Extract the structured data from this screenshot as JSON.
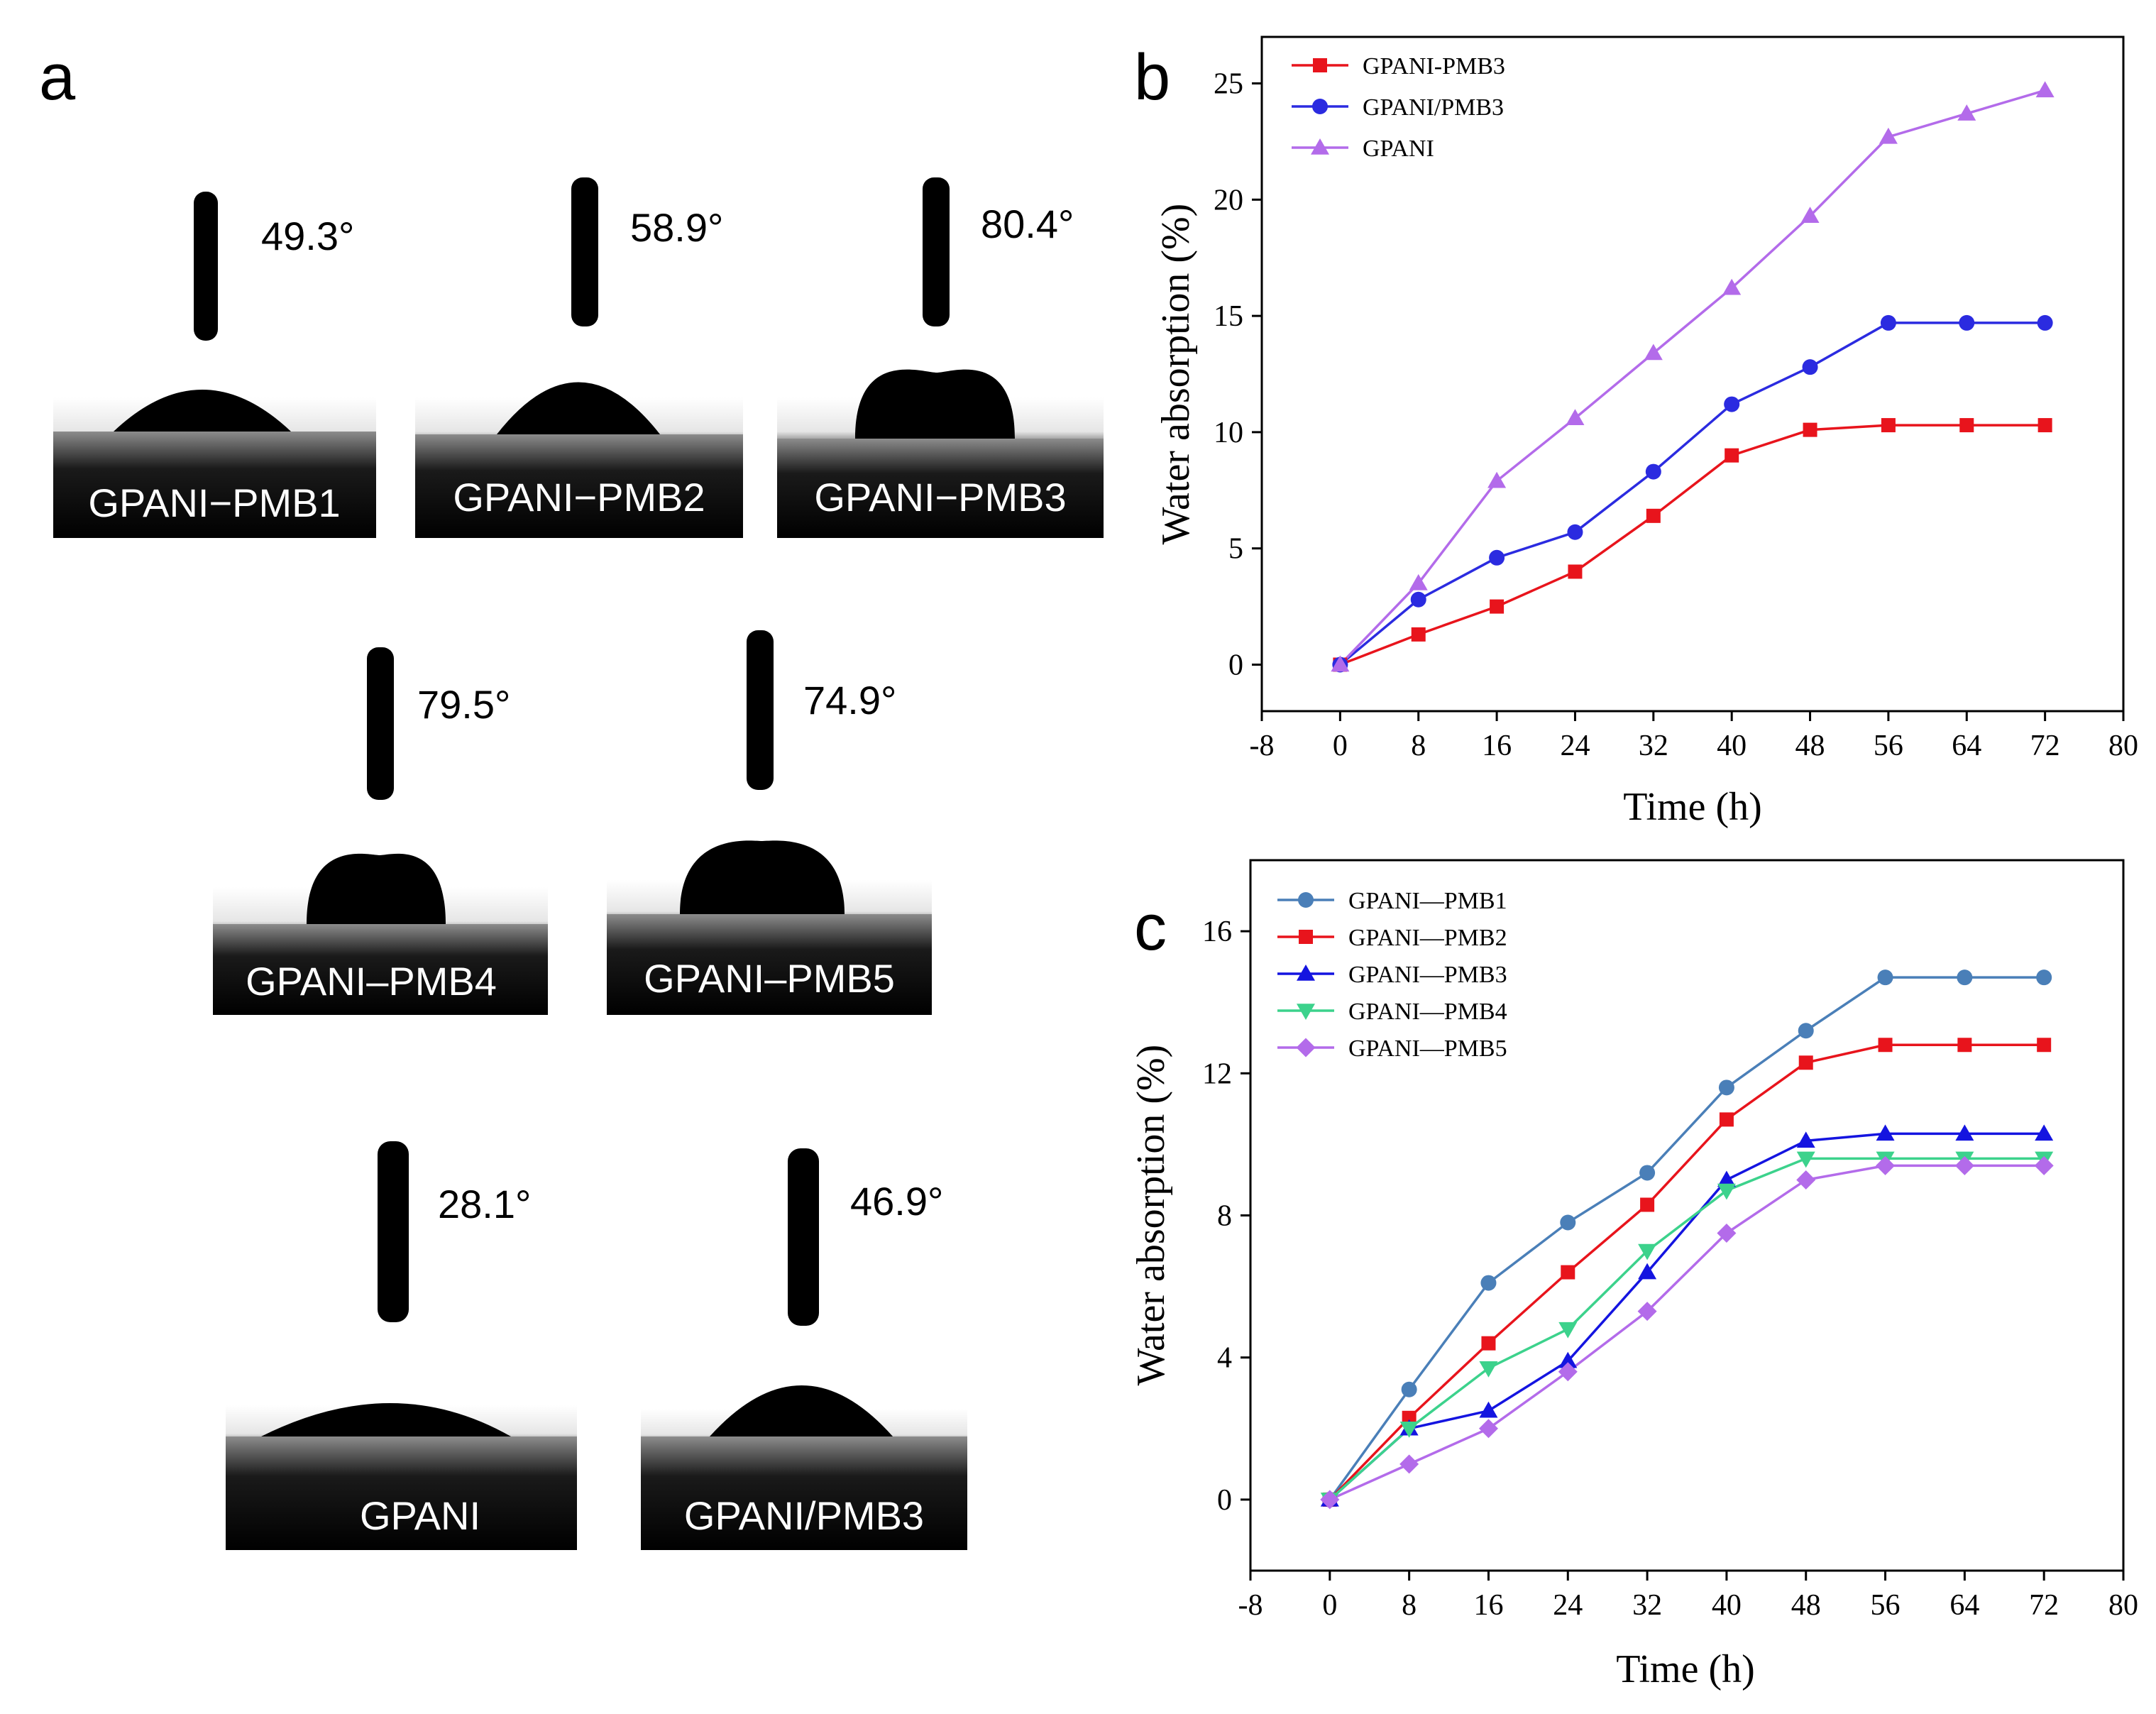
{
  "panel_a": {
    "letter": "a",
    "samples": [
      {
        "name": "GPANI−PMB1",
        "angle": "49.3°"
      },
      {
        "name": "GPANI−PMB2",
        "angle": "58.9°"
      },
      {
        "name": "GPANI−PMB3",
        "angle": "80.4°"
      },
      {
        "name": "GPANI–PMB4",
        "angle": "79.5°"
      },
      {
        "name": "GPANI–PMB5",
        "angle": "74.9°"
      },
      {
        "name": "GPANI",
        "angle": "28.1°"
      },
      {
        "name": "GPANI/PMB3",
        "angle": "46.9°"
      }
    ]
  },
  "chart_data": [
    {
      "panel": "b",
      "type": "line",
      "xlabel": "Time (h)",
      "ylabel": "Water absorption (%)",
      "xlim": [
        -8,
        80
      ],
      "ylim": [
        -2,
        27
      ],
      "xticks": [
        -8,
        0,
        8,
        16,
        24,
        32,
        40,
        48,
        56,
        64,
        72,
        80
      ],
      "yticks": [
        0,
        5,
        10,
        15,
        20,
        25
      ],
      "legend_position": "top-left",
      "x": [
        0,
        8,
        16,
        24,
        32,
        40,
        48,
        56,
        64,
        72
      ],
      "series": [
        {
          "name": "GPANI-PMB3",
          "color": "#e8141c",
          "marker": "square",
          "values": [
            0,
            1.3,
            2.5,
            4.0,
            6.4,
            9.0,
            10.1,
            10.3,
            10.3,
            10.3
          ]
        },
        {
          "name": "GPANI/PMB3",
          "color": "#2b2be0",
          "marker": "circle",
          "values": [
            0,
            2.8,
            4.6,
            5.7,
            8.3,
            11.2,
            12.8,
            14.7,
            14.7,
            14.7
          ]
        },
        {
          "name": "GPANI",
          "color": "#b36bea",
          "marker": "triangle-up",
          "values": [
            0,
            3.5,
            7.9,
            10.6,
            13.4,
            16.2,
            19.3,
            22.7,
            23.7,
            24.7
          ]
        }
      ]
    },
    {
      "panel": "c",
      "type": "line",
      "xlabel": "Time (h)",
      "ylabel": "Water absorption (%)",
      "xlim": [
        -8,
        80
      ],
      "ylim": [
        -2,
        18
      ],
      "xticks": [
        -8,
        0,
        8,
        16,
        24,
        32,
        40,
        48,
        56,
        64,
        72,
        80
      ],
      "yticks": [
        0,
        4,
        8,
        12,
        16
      ],
      "legend_position": "top-left",
      "x": [
        0,
        8,
        16,
        24,
        32,
        40,
        48,
        56,
        64,
        72
      ],
      "series": [
        {
          "name": "GPANI—PMB1",
          "color": "#4a7fb8",
          "marker": "circle",
          "values": [
            0,
            3.1,
            6.1,
            7.8,
            9.2,
            11.6,
            13.2,
            14.7,
            14.7,
            14.7
          ]
        },
        {
          "name": "GPANI—PMB2",
          "color": "#e8141c",
          "marker": "square",
          "values": [
            0,
            2.3,
            4.4,
            6.4,
            8.3,
            10.7,
            12.3,
            12.8,
            12.8,
            12.8
          ]
        },
        {
          "name": "GPANI—PMB3",
          "color": "#1414e0",
          "marker": "triangle-up",
          "values": [
            0,
            2.0,
            2.5,
            3.9,
            6.4,
            9.0,
            10.1,
            10.3,
            10.3,
            10.3
          ]
        },
        {
          "name": "GPANI—PMB4",
          "color": "#3cd28c",
          "marker": "triangle-down",
          "values": [
            0,
            2.0,
            3.7,
            4.8,
            7.0,
            8.7,
            9.6,
            9.6,
            9.6,
            9.6
          ]
        },
        {
          "name": "GPANI—PMB5",
          "color": "#b36bea",
          "marker": "diamond",
          "values": [
            0,
            1.0,
            2.0,
            3.6,
            5.3,
            7.5,
            9.0,
            9.4,
            9.4,
            9.4
          ]
        }
      ]
    }
  ]
}
